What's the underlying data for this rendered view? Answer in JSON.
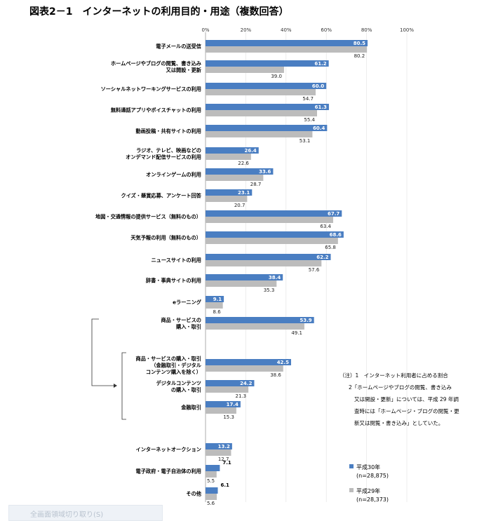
{
  "title": "図表2－1　インターネットの利用目的・用途（複数回答）",
  "chart_data": {
    "type": "bar",
    "orientation": "horizontal",
    "xlim": [
      0,
      100
    ],
    "x_ticks": [
      "0%",
      "20%",
      "40%",
      "60%",
      "80%",
      "100%"
    ],
    "grid": true,
    "legend_position": "bottom-right",
    "categories": [
      [
        "電子メールの送受信"
      ],
      [
        "ホームページやブログの閲覧、書き込み",
        "又は開設・更新"
      ],
      [
        "ソーシャルネットワーキングサービスの利用"
      ],
      [
        "無料通話アプリやボイスチャットの利用"
      ],
      [
        "動画投稿・共有サイトの利用"
      ],
      [
        "ラジオ、テレビ、映画などの",
        "オンデマンド配信サービスの利用"
      ],
      [
        "オンラインゲームの利用"
      ],
      [
        "クイズ・懸賞応募、アンケート回答"
      ],
      [
        "地図・交通情報の提供サービス（無料のもの）"
      ],
      [
        "天気予報の利用（無料のもの）"
      ],
      [
        "ニュースサイトの利用"
      ],
      [
        "辞書・事典サイトの利用"
      ],
      [
        "eラーニング"
      ],
      [
        "商品・サービスの",
        "購入・取引"
      ],
      [
        "商品・サービスの購入・取引",
        "（金融取引・デジタル",
        "コンテンツ購入を除く）"
      ],
      [
        "デジタルコンテンツ",
        "の購入・取引"
      ],
      [
        "金融取引"
      ],
      [
        "インターネットオークション"
      ],
      [
        "電子政府・電子自治体の利用"
      ],
      [
        "その他"
      ]
    ],
    "series": [
      {
        "name": "平成30年",
        "sub": "(n=28,875)",
        "color": "#4a7ec2",
        "values": [
          80.5,
          61.2,
          60.0,
          61.3,
          60.4,
          26.4,
          33.6,
          23.1,
          67.7,
          68.6,
          62.2,
          38.4,
          9.1,
          53.9,
          42.5,
          24.2,
          17.4,
          13.2,
          7.1,
          6.1
        ]
      },
      {
        "name": "平成29年",
        "sub": "(n=28,373)",
        "color": "#bcbcbc",
        "values": [
          80.2,
          39.0,
          54.7,
          55.4,
          53.1,
          22.6,
          28.7,
          20.7,
          63.4,
          65.8,
          57.6,
          35.3,
          8.6,
          49.1,
          38.6,
          21.3,
          15.3,
          12.7,
          5.5,
          5.6
        ]
      }
    ]
  },
  "notes": [
    "（注）1　インターネット利用者に占める割合",
    "2「ホームページやブログの閲覧、書き込み",
    "又は開設・更新」については、平成 29 年調",
    "査時には「ホームページ・ブログの閲覧・更",
    "新又は閲覧・書き込み」としていた。"
  ],
  "ocr_tool": {
    "label": "全画面領域切り取り(S)"
  }
}
